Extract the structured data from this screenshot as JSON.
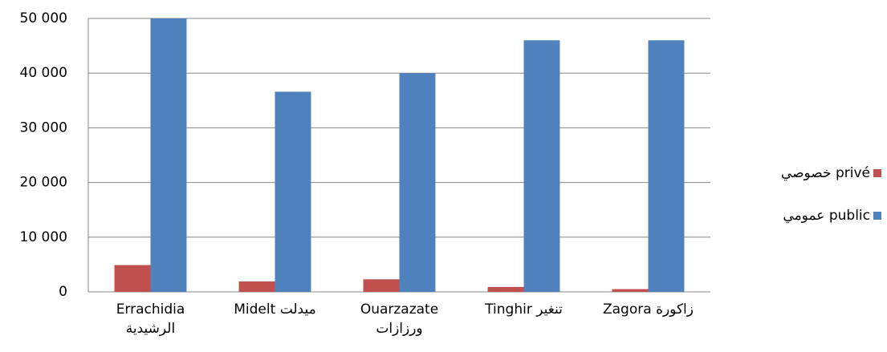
{
  "chart_data": {
    "type": "bar",
    "categories": [
      [
        "Errachidia",
        "الرشيدية"
      ],
      [
        "Midelt ميدلت"
      ],
      [
        "Ouarzazate",
        "ورزازات"
      ],
      [
        "Tinghir تنغير"
      ],
      [
        "Zagora زاكورة"
      ]
    ],
    "series": [
      {
        "name": "خصوصي privé",
        "color": "#c0504d",
        "values": [
          4900,
          1900,
          2300,
          900,
          500
        ]
      },
      {
        "name": "عمومي public",
        "color": "#4f81bd",
        "values": [
          50000,
          36600,
          40000,
          46000,
          46000
        ]
      }
    ],
    "ylim": [
      0,
      50000
    ],
    "yticks": [
      0,
      {
        "value": 10000,
        "label": "10 000"
      },
      {
        "value": 20000,
        "label": "20 000"
      },
      {
        "value": 30000,
        "label": "30 000"
      },
      {
        "value": 40000,
        "label": "40 000"
      },
      {
        "value": 50000,
        "label": "50 000"
      }
    ],
    "grid": true,
    "legend": "right"
  }
}
